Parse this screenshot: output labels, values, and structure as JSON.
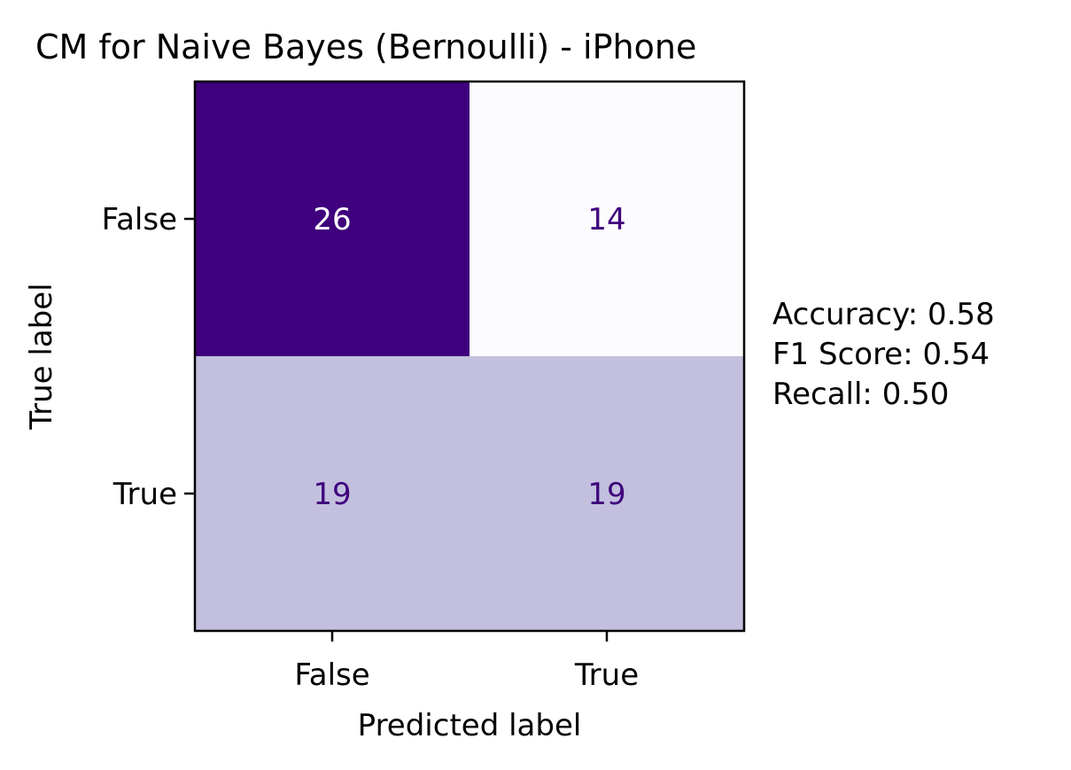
{
  "chart_data": {
    "type": "heatmap",
    "title": "CM for Naive Bayes (Bernoulli) - iPhone",
    "xlabel": "Predicted label",
    "ylabel": "True label",
    "x_categories": [
      "False",
      "True"
    ],
    "y_categories": [
      "False",
      "True"
    ],
    "values": [
      [
        26,
        14
      ],
      [
        19,
        19
      ]
    ],
    "colormap": "Purples",
    "colors": {
      "max": "#3f007d",
      "min": "#fcfbfd",
      "mid": "#b2b0d6",
      "text_on_dark": "#ffffff",
      "text_on_light": "#3f007d"
    }
  },
  "metrics": {
    "accuracy": "Accuracy: 0.58",
    "f1": "F1 Score: 0.54",
    "recall": "Recall: 0.50"
  }
}
